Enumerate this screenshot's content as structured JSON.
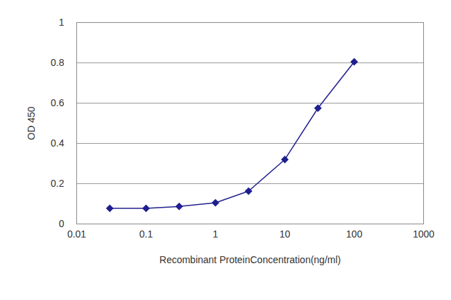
{
  "chart_data": {
    "type": "line",
    "x_label": "Recombinant ProteinConcentration(ng/ml)",
    "y_label": "OD 450",
    "x": [
      0.03,
      0.1,
      0.3,
      1,
      3,
      10,
      30,
      100
    ],
    "values": [
      0.078,
      0.078,
      0.087,
      0.105,
      0.163,
      0.32,
      0.575,
      0.805
    ],
    "color": "#1f1f8f",
    "marker": "diamond",
    "log": "x",
    "xlim": [
      0.01,
      1000
    ],
    "xticks": [
      0.01,
      0.1,
      1,
      10,
      100,
      1000
    ],
    "ylim": [
      0,
      1
    ],
    "yticks": [
      0,
      0.2,
      0.4,
      0.6,
      0.8,
      1
    ],
    "grid": true
  }
}
